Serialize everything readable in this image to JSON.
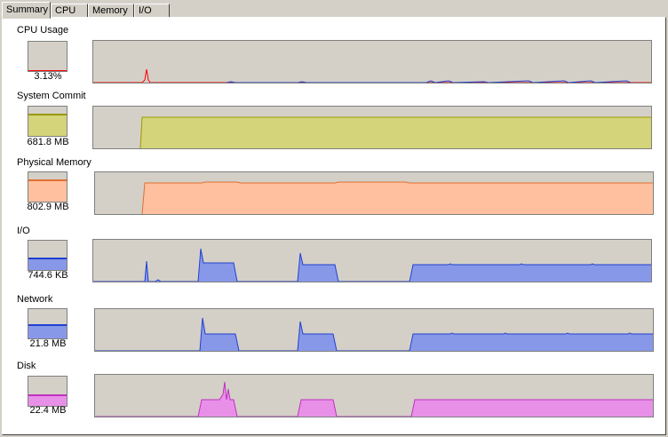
{
  "tabs": [
    "Summary",
    "CPU",
    "Memory",
    "I/O"
  ],
  "sections": [
    {
      "id": "cpu",
      "title": "CPU Usage",
      "value": "3.13%",
      "level": 0.03,
      "color": "#ff0000",
      "fill": "#ff0000"
    },
    {
      "id": "commit",
      "title": "System Commit",
      "value": "681.8 MB",
      "level": 0.72,
      "color": "#9a9a00",
      "fill": "#d4d47a"
    },
    {
      "id": "physical",
      "title": "Physical Memory",
      "value": "802.9 MB",
      "level": 0.74,
      "color": "#e07030",
      "fill": "#ffc0a0"
    },
    {
      "id": "io",
      "title": "I/O",
      "value": "744.6  KB",
      "level": 0.4,
      "color": "#2040d0",
      "fill": "#8898e8"
    },
    {
      "id": "network",
      "title": "Network",
      "value": "21.8  MB",
      "level": 0.45,
      "color": "#2040d0",
      "fill": "#8898e8"
    },
    {
      "id": "disk",
      "title": "Disk",
      "value": "22.4  MB",
      "level": 0.35,
      "color": "#c030c0",
      "fill": "#e890e8"
    }
  ]
}
